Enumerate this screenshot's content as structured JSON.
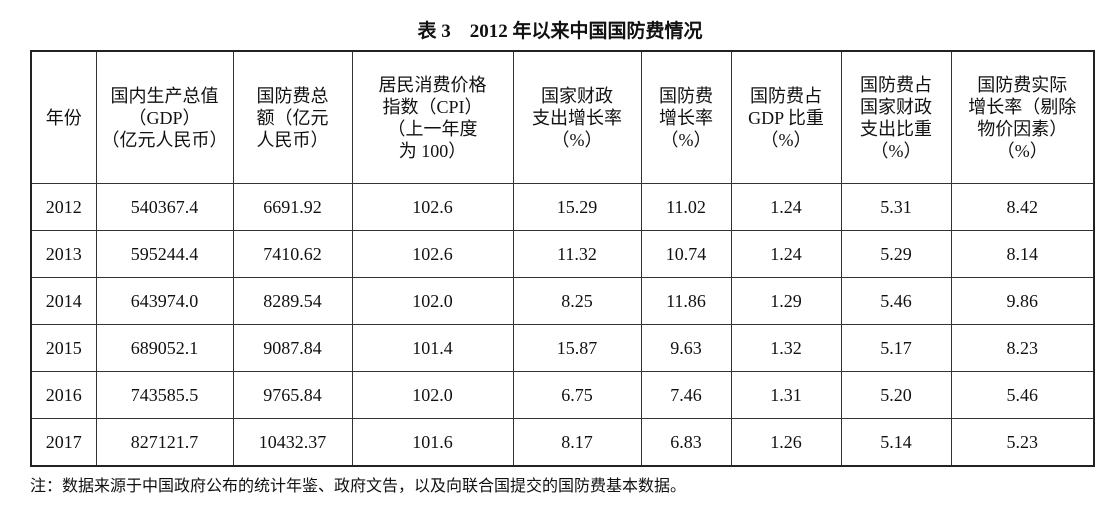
{
  "title": "表 3　2012 年以来中国国防费情况",
  "table": {
    "header": [
      [
        "年份"
      ],
      [
        "国内生产总值",
        "（GDP）",
        "（亿元人民币）"
      ],
      [
        "国防费总",
        "额（亿元",
        "人民币）"
      ],
      [
        "居民消费价格",
        "指数（CPI）",
        "（上一年度",
        "为 100）"
      ],
      [
        "国家财政",
        "支出增长率",
        "（%）"
      ],
      [
        "国防费",
        "增长率",
        "（%）"
      ],
      [
        "国防费占",
        "GDP 比重",
        "（%）"
      ],
      [
        "国防费占",
        "国家财政",
        "支出比重",
        "（%）"
      ],
      [
        "国防费实际",
        "增长率（剔除",
        "物价因素）",
        "（%）"
      ]
    ],
    "rows": [
      [
        "2012",
        "540367.4",
        "6691.92",
        "102.6",
        "15.29",
        "11.02",
        "1.24",
        "5.31",
        "8.42"
      ],
      [
        "2013",
        "595244.4",
        "7410.62",
        "102.6",
        "11.32",
        "10.74",
        "1.24",
        "5.29",
        "8.14"
      ],
      [
        "2014",
        "643974.0",
        "8289.54",
        "102.0",
        "8.25",
        "11.86",
        "1.29",
        "5.46",
        "9.86"
      ],
      [
        "2015",
        "689052.1",
        "9087.84",
        "101.4",
        "15.87",
        "9.63",
        "1.32",
        "5.17",
        "8.23"
      ],
      [
        "2016",
        "743585.5",
        "9765.84",
        "102.0",
        "6.75",
        "7.46",
        "1.31",
        "5.20",
        "5.46"
      ],
      [
        "2017",
        "827121.7",
        "10432.37",
        "101.6",
        "8.17",
        "6.83",
        "1.26",
        "5.14",
        "5.23"
      ]
    ]
  },
  "note": "注：数据来源于中国政府公布的统计年鉴、政府文告，以及向联合国提交的国防费基本数据。"
}
